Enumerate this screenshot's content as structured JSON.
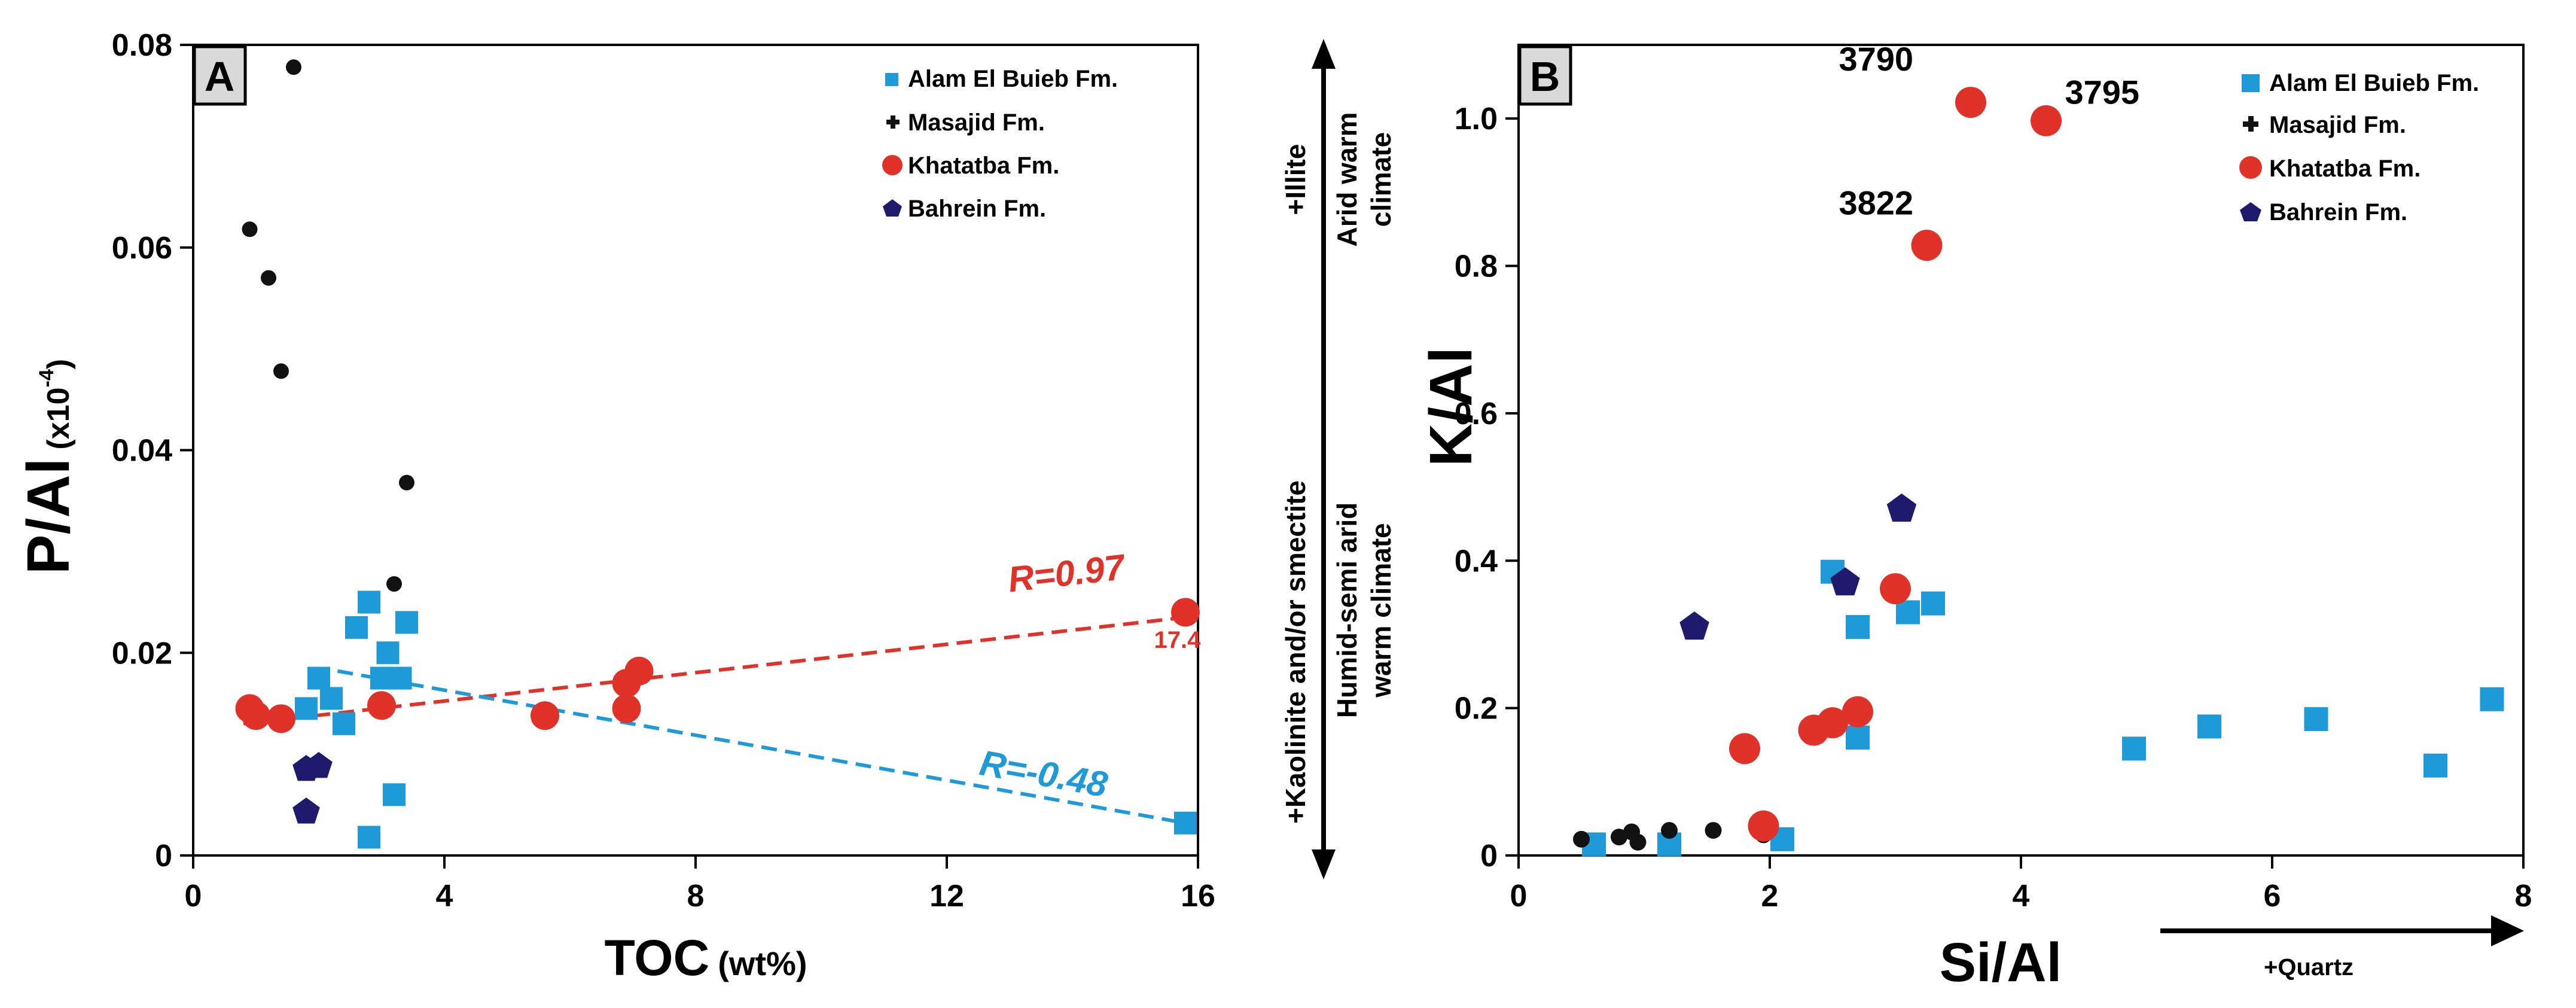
{
  "colors": {
    "alam": "#1e9ad9",
    "masajid": "#111111",
    "khatatba": "#e1322a",
    "bahrein": "#1f1a6b",
    "panel_box": "#d9d9d9"
  },
  "chart_data": [
    {
      "type": "scatter",
      "panel": "A",
      "xlabel": "TOC",
      "xlabel_unit": "(wt%)",
      "ylabel": "P/Al",
      "ylabel_unit_prefix": "(x10",
      "ylabel_unit_exp": "-4",
      "ylabel_unit_suffix": ")",
      "xlim": [
        0,
        16
      ],
      "ylim": [
        0,
        0.08
      ],
      "xticks": [
        0,
        4,
        8,
        12,
        16
      ],
      "xtick_labels": [
        "0",
        "4",
        "8",
        "12",
        "16"
      ],
      "yticks": [
        0,
        0.02,
        0.04,
        0.06,
        0.08
      ],
      "ytick_labels": [
        "0",
        "0.02",
        "0.04",
        "0.06",
        "0.08"
      ],
      "legend": [
        "Alam El Buieb Fm.",
        "Masajid Fm.",
        "Khatatba Fm.",
        "Bahrein Fm."
      ],
      "series": [
        {
          "name": "Alam El Buieb Fm.",
          "key": "alam",
          "marker": "square",
          "points": [
            [
              1.8,
              0.0145
            ],
            [
              2.0,
              0.0175
            ],
            [
              2.2,
              0.0155
            ],
            [
              2.4,
              0.013
            ],
            [
              2.6,
              0.0225
            ],
            [
              2.8,
              0.025
            ],
            [
              3.0,
              0.0175
            ],
            [
              3.1,
              0.02
            ],
            [
              3.3,
              0.0175
            ],
            [
              3.4,
              0.023
            ],
            [
              3.2,
              0.006
            ],
            [
              2.8,
              0.0018
            ],
            [
              15.8,
              0.0032
            ]
          ]
        },
        {
          "name": "Masajid Fm.",
          "key": "masajid",
          "marker": "dot",
          "points": [
            [
              1.6,
              0.0778
            ],
            [
              0.9,
              0.0618
            ],
            [
              1.2,
              0.057
            ],
            [
              1.4,
              0.0478
            ],
            [
              3.4,
              0.0368
            ],
            [
              3.2,
              0.0268
            ]
          ]
        },
        {
          "name": "Khatatba Fm.",
          "key": "khatatba",
          "marker": "circle",
          "points": [
            [
              0.9,
              0.0145
            ],
            [
              1.0,
              0.0138
            ],
            [
              1.4,
              0.0135
            ],
            [
              3.0,
              0.0148
            ],
            [
              5.6,
              0.0138
            ],
            [
              6.9,
              0.017
            ],
            [
              7.1,
              0.0182
            ],
            [
              6.9,
              0.0145
            ],
            [
              15.8,
              0.024
            ]
          ]
        },
        {
          "name": "Bahrein Fm.",
          "key": "bahrein",
          "marker": "pentagon",
          "points": [
            [
              1.8,
              0.0085
            ],
            [
              2.0,
              0.0088
            ],
            [
              1.8,
              0.0043
            ]
          ]
        }
      ],
      "trendlines": [
        {
          "key": "khatatba",
          "from": [
            0.8,
            0.013
          ],
          "to": [
            15.8,
            0.0235
          ],
          "label": "R=0.97",
          "label_at": [
            13.0,
            0.026
          ]
        },
        {
          "key": "alam",
          "from": [
            2.3,
            0.0182
          ],
          "to": [
            15.8,
            0.0032
          ],
          "label": "R=-0.48",
          "label_at": [
            12.5,
            0.008
          ]
        }
      ],
      "point_annotations": [
        {
          "text": "17.4",
          "key": "khatatba",
          "at": [
            15.3,
            0.0205
          ]
        }
      ]
    },
    {
      "type": "scatter",
      "panel": "B",
      "xlabel": "Si/Al",
      "ylabel": "K/Al",
      "xlim": [
        0,
        8
      ],
      "ylim": [
        0,
        1.1
      ],
      "xticks": [
        0,
        2,
        4,
        6,
        8
      ],
      "xtick_labels": [
        "0",
        "2",
        "4",
        "6",
        "8"
      ],
      "yticks": [
        0,
        0.2,
        0.4,
        0.6,
        0.8,
        1.0
      ],
      "ytick_labels": [
        "0",
        "0.2",
        "0.4",
        "0.6",
        "0.8",
        "1.0"
      ],
      "legend": [
        "Alam El Buieb Fm.",
        "Masajid Fm.",
        "Khatatba Fm.",
        "Bahrein Fm."
      ],
      "series": [
        {
          "name": "Alam El Buieb Fm.",
          "key": "alam",
          "marker": "square",
          "points": [
            [
              0.6,
              0.015
            ],
            [
              1.2,
              0.015
            ],
            [
              2.1,
              0.022
            ],
            [
              2.5,
              0.385
            ],
            [
              2.7,
              0.31
            ],
            [
              2.7,
              0.16
            ],
            [
              3.1,
              0.33
            ],
            [
              3.3,
              0.342
            ],
            [
              4.9,
              0.145
            ],
            [
              5.5,
              0.175
            ],
            [
              6.35,
              0.185
            ],
            [
              7.3,
              0.122
            ],
            [
              7.75,
              0.212
            ]
          ]
        },
        {
          "name": "Masajid Fm.",
          "key": "masajid",
          "marker": "dot",
          "points": [
            [
              0.5,
              0.022
            ],
            [
              0.8,
              0.025
            ],
            [
              0.9,
              0.032
            ],
            [
              0.95,
              0.018
            ],
            [
              1.2,
              0.034
            ],
            [
              1.55,
              0.034
            ],
            [
              1.95,
              0.028
            ]
          ]
        },
        {
          "name": "Khatatba Fm.",
          "key": "khatatba",
          "marker": "circle",
          "points": [
            [
              1.8,
              0.145
            ],
            [
              1.95,
              0.04
            ],
            [
              2.35,
              0.17
            ],
            [
              2.5,
              0.18
            ],
            [
              2.7,
              0.195
            ],
            [
              3.0,
              0.362
            ],
            [
              3.25,
              0.828
            ],
            [
              3.6,
              1.022
            ],
            [
              4.2,
              0.997
            ]
          ]
        },
        {
          "name": "Bahrein Fm.",
          "key": "bahrein",
          "marker": "pentagon",
          "points": [
            [
              1.4,
              0.31
            ],
            [
              2.6,
              0.37
            ],
            [
              3.05,
              0.47
            ]
          ]
        }
      ],
      "point_annotations": [
        {
          "text": "3790",
          "at": [
            2.55,
            1.065
          ]
        },
        {
          "text": "3795",
          "at": [
            4.35,
            1.02
          ]
        },
        {
          "text": "3822",
          "at": [
            2.55,
            0.87
          ]
        }
      ],
      "side_annotations": {
        "top_line1": "+Illite",
        "top_line2": "Arid warm",
        "top_line3": "climate",
        "bottom_line1": "+Kaolinite and/or smectite",
        "bottom_line2": "Humid-semi arid",
        "bottom_line3": "warm climate",
        "quartz": "+Quartz"
      }
    }
  ]
}
